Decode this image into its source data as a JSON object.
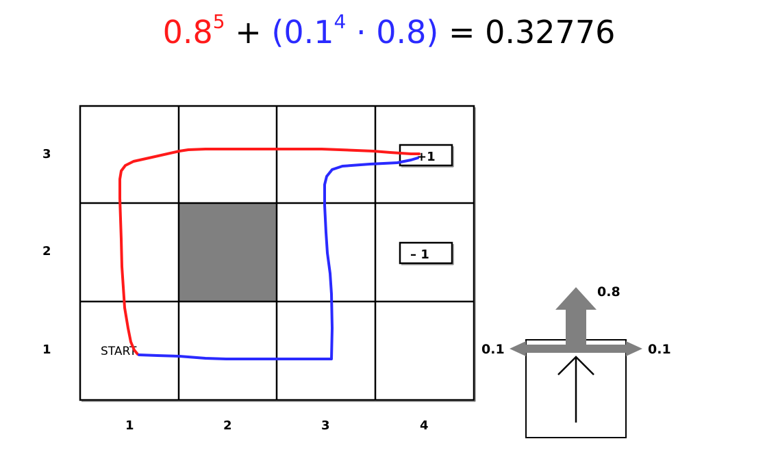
{
  "equation": {
    "red_base": "0.8",
    "red_exp": "5",
    "plus": " + ",
    "blue_open": "(0.1",
    "blue_exp": "4",
    "blue_close": " · 0.8)",
    "equals": " = ",
    "result": "0.32776"
  },
  "grid": {
    "row_labels": [
      "3",
      "2",
      "1"
    ],
    "col_labels": [
      "1",
      "2",
      "3",
      "4"
    ],
    "start_label": "START",
    "reward_positive": "+1",
    "reward_negative": "– 1"
  },
  "action_model": {
    "forward_prob": "0.8",
    "left_prob": "0.1",
    "right_prob": "0.1"
  },
  "colors": {
    "red_path": "#ff1a1a",
    "blue_path": "#2a2aff",
    "obstacle": "#808080",
    "arrow_gray": "#808080"
  }
}
